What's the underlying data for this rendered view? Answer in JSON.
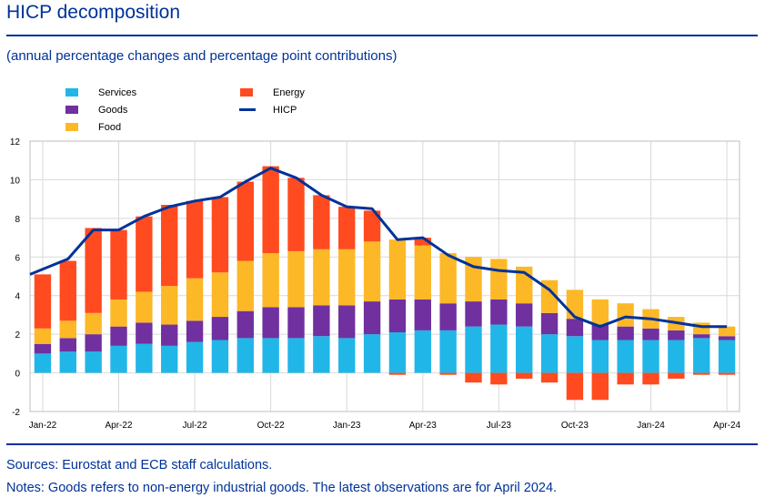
{
  "title": "HICP decomposition",
  "subtitle": "(annual percentage changes and percentage point contributions)",
  "sources": "Sources: Eurostat and ECB staff calculations.",
  "notes": "Notes: Goods refers to non-energy industrial goods. The latest observations are for April 2024.",
  "colors": {
    "services": "#21b6e8",
    "goods": "#7030a0",
    "food": "#fcb826",
    "energy": "#ff4b1f",
    "hicp": "#003299",
    "brand": "#003299"
  },
  "chart_data": {
    "type": "bar",
    "stacked": true,
    "legend": {
      "placement": "top-left",
      "entries": [
        {
          "key": "services",
          "label": "Services"
        },
        {
          "key": "goods",
          "label": "Goods"
        },
        {
          "key": "food",
          "label": "Food"
        },
        {
          "key": "energy",
          "label": "Energy"
        },
        {
          "key": "hicp",
          "label": "HICP"
        }
      ]
    },
    "categories": [
      "Jan-22",
      "Feb-22",
      "Mar-22",
      "Apr-22",
      "May-22",
      "Jun-22",
      "Jul-22",
      "Aug-22",
      "Sep-22",
      "Oct-22",
      "Nov-22",
      "Dec-22",
      "Jan-23",
      "Feb-23",
      "Mar-23",
      "Apr-23",
      "May-23",
      "Jun-23",
      "Jul-23",
      "Aug-23",
      "Sep-23",
      "Oct-23",
      "Nov-23",
      "Dec-23",
      "Jan-24",
      "Feb-24",
      "Mar-24",
      "Apr-24"
    ],
    "xticks": [
      "Jan-22",
      "Apr-22",
      "Jul-22",
      "Oct-22",
      "Jan-23",
      "Apr-23",
      "Jul-23",
      "Oct-23",
      "Jan-24",
      "Apr-24"
    ],
    "ylim": [
      -2,
      12
    ],
    "yticks": [
      -2,
      0,
      2,
      4,
      6,
      8,
      10,
      12
    ],
    "grid": true,
    "series": [
      {
        "key": "services",
        "name": "Services",
        "kind": "bar",
        "values": [
          1.0,
          1.1,
          1.1,
          1.4,
          1.5,
          1.4,
          1.6,
          1.7,
          1.8,
          1.8,
          1.8,
          1.9,
          1.8,
          2.0,
          2.1,
          2.2,
          2.2,
          2.4,
          2.5,
          2.4,
          2.0,
          1.9,
          1.7,
          1.7,
          1.7,
          1.7,
          1.8,
          1.7
        ]
      },
      {
        "key": "goods",
        "name": "Goods",
        "kind": "bar",
        "values": [
          0.5,
          0.7,
          0.9,
          1.0,
          1.1,
          1.1,
          1.1,
          1.2,
          1.4,
          1.6,
          1.6,
          1.6,
          1.7,
          1.7,
          1.7,
          1.6,
          1.4,
          1.3,
          1.3,
          1.2,
          1.1,
          0.9,
          0.8,
          0.7,
          0.6,
          0.5,
          0.2,
          0.2
        ]
      },
      {
        "key": "food",
        "name": "Food",
        "kind": "bar",
        "values": [
          0.8,
          0.9,
          1.1,
          1.4,
          1.6,
          2.0,
          2.2,
          2.3,
          2.6,
          2.8,
          2.9,
          2.9,
          2.9,
          3.1,
          3.1,
          2.8,
          2.6,
          2.3,
          2.1,
          1.9,
          1.7,
          1.5,
          1.3,
          1.2,
          1.0,
          0.7,
          0.6,
          0.5
        ]
      },
      {
        "key": "energy",
        "name": "Energy",
        "kind": "bar",
        "values": [
          2.8,
          3.1,
          4.4,
          3.6,
          3.9,
          4.2,
          4.0,
          3.9,
          4.1,
          4.5,
          3.8,
          2.8,
          2.2,
          1.6,
          -0.1,
          0.4,
          -0.1,
          -0.5,
          -0.6,
          -0.3,
          -0.5,
          -1.4,
          -1.4,
          -0.6,
          -0.6,
          -0.3,
          -0.1,
          -0.1
        ]
      },
      {
        "key": "hicp",
        "name": "HICP",
        "kind": "line",
        "values": [
          5.1,
          5.9,
          7.4,
          7.4,
          8.1,
          8.6,
          8.9,
          9.1,
          9.9,
          10.6,
          10.1,
          9.2,
          8.6,
          8.5,
          6.9,
          7.0,
          6.1,
          5.5,
          5.3,
          5.2,
          4.3,
          2.9,
          2.4,
          2.9,
          2.8,
          2.6,
          2.4,
          2.4
        ]
      }
    ]
  }
}
